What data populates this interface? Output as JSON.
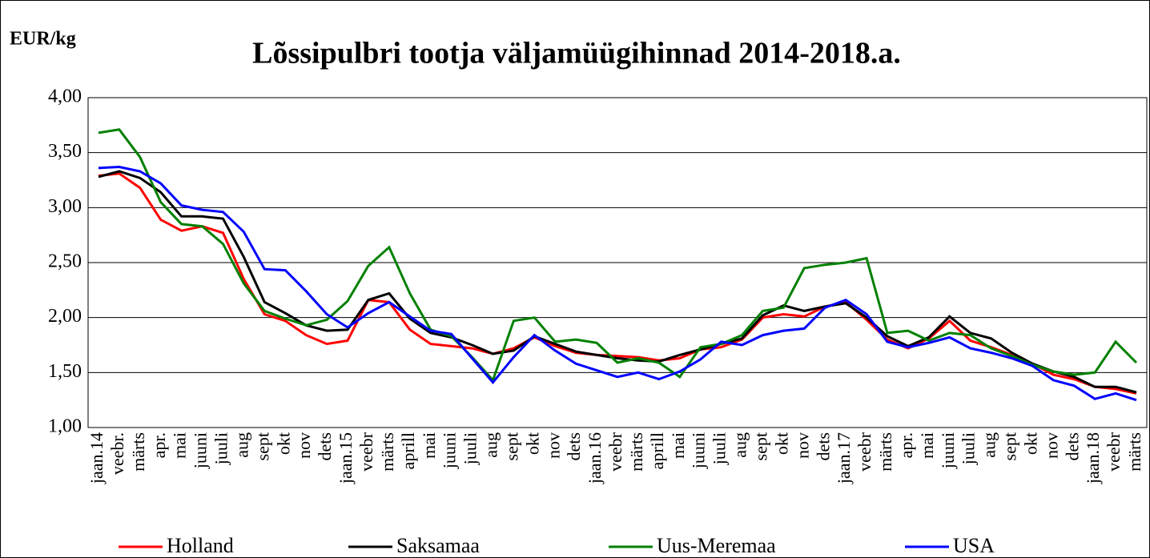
{
  "chart_data": {
    "type": "line",
    "title": "Lõssipulbri tootja väljamüügihinnad 2014-2018.a.",
    "y_axis_label": "EUR/kg",
    "categories": [
      "jaan.14",
      "veebr.",
      "märts",
      "apr.",
      "mai",
      "juuni",
      "juuli",
      "aug",
      "sept",
      "okt",
      "nov",
      "dets",
      "jaan.15",
      "veebr",
      "märts",
      "aprill",
      "mai",
      "juuni",
      "juuli",
      "aug",
      "sept",
      "okt",
      "nov",
      "dets",
      "jaan.16",
      "veebr",
      "märts",
      "aprill",
      "mai",
      "juuni",
      "juuli",
      "aug",
      "sept",
      "okt",
      "nov",
      "dets",
      "jaan.17",
      "veebr",
      "märts",
      "apr.",
      "mai",
      "juuni",
      "juuli",
      "aug",
      "sept",
      "okt",
      "nov",
      "dets",
      "jaan.18",
      "veebr",
      "märts"
    ],
    "series": [
      {
        "name": "Holland",
        "color": "#ff0000",
        "values": [
          3.29,
          3.31,
          3.18,
          2.89,
          2.79,
          2.83,
          2.77,
          2.35,
          2.03,
          1.97,
          1.84,
          1.76,
          1.79,
          2.16,
          2.14,
          1.89,
          1.76,
          1.74,
          1.72,
          1.67,
          1.72,
          1.82,
          1.74,
          1.68,
          1.66,
          1.65,
          1.64,
          1.61,
          1.63,
          1.71,
          1.73,
          1.8,
          2.0,
          2.03,
          2.01,
          2.1,
          2.14,
          1.98,
          1.8,
          1.72,
          1.81,
          1.97,
          1.79,
          1.73,
          1.66,
          1.58,
          1.48,
          1.44,
          1.37,
          1.35,
          1.31
        ]
      },
      {
        "name": "Saksamaa",
        "color": "#000000",
        "values": [
          3.28,
          3.33,
          3.27,
          3.14,
          2.92,
          2.92,
          2.9,
          2.55,
          2.14,
          2.04,
          1.93,
          1.88,
          1.89,
          2.16,
          2.22,
          1.99,
          1.86,
          1.82,
          1.75,
          1.67,
          1.7,
          1.83,
          1.76,
          1.69,
          1.66,
          1.63,
          1.61,
          1.6,
          1.66,
          1.71,
          1.76,
          1.81,
          2.02,
          2.11,
          2.06,
          2.1,
          2.13,
          2.0,
          1.83,
          1.74,
          1.82,
          2.01,
          1.86,
          1.81,
          1.68,
          1.58,
          1.51,
          1.46,
          1.37,
          1.37,
          1.32
        ]
      },
      {
        "name": "Uus-Meremaa",
        "color": "#008000",
        "values": [
          3.68,
          3.71,
          3.46,
          3.05,
          2.85,
          2.83,
          2.67,
          2.31,
          2.06,
          1.99,
          1.93,
          1.98,
          2.15,
          2.47,
          2.64,
          2.22,
          1.89,
          1.83,
          1.64,
          1.43,
          1.97,
          2.0,
          1.78,
          1.8,
          1.77,
          1.59,
          1.63,
          1.59,
          1.46,
          1.73,
          1.76,
          1.84,
          2.06,
          2.09,
          2.45,
          2.48,
          2.5,
          2.54,
          1.86,
          1.88,
          1.79,
          1.86,
          1.84,
          1.72,
          1.65,
          1.57,
          1.51,
          1.48,
          1.5,
          1.78,
          1.59
        ]
      },
      {
        "name": "USA",
        "color": "#0000ff",
        "values": [
          3.36,
          3.37,
          3.33,
          3.22,
          3.02,
          2.98,
          2.96,
          2.78,
          2.44,
          2.43,
          2.24,
          2.03,
          1.91,
          2.04,
          2.14,
          2.01,
          1.88,
          1.85,
          1.63,
          1.41,
          1.64,
          1.84,
          1.7,
          1.58,
          1.52,
          1.46,
          1.5,
          1.44,
          1.51,
          1.62,
          1.78,
          1.75,
          1.84,
          1.88,
          1.9,
          2.09,
          2.16,
          2.03,
          1.78,
          1.73,
          1.77,
          1.82,
          1.72,
          1.68,
          1.63,
          1.56,
          1.43,
          1.38,
          1.26,
          1.31,
          1.25
        ]
      }
    ],
    "ylim": [
      1,
      4
    ],
    "yticks": [
      {
        "value": 1,
        "label": "1,00"
      },
      {
        "value": 1.5,
        "label": "1,50"
      },
      {
        "value": 2,
        "label": "2,00"
      },
      {
        "value": 2.5,
        "label": "2,50"
      },
      {
        "value": 3,
        "label": "3,00"
      },
      {
        "value": 3.5,
        "label": "3,50"
      },
      {
        "value": 4,
        "label": "4,00"
      }
    ],
    "grid": true,
    "legend": "bottom"
  }
}
